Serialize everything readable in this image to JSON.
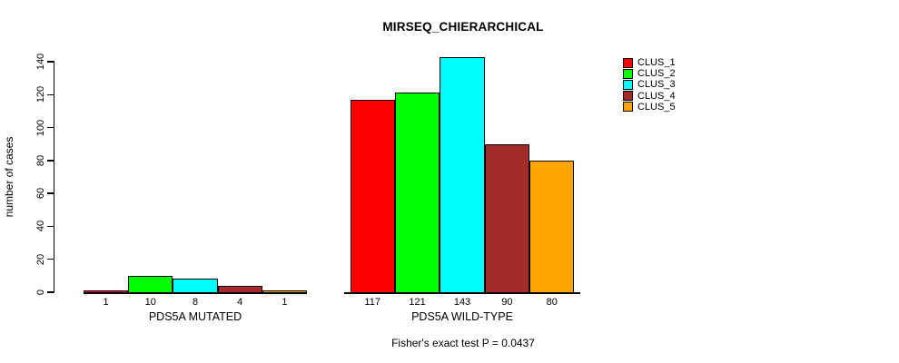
{
  "title": "MIRSEQ_CHIERARCHICAL",
  "footer": "Fisher's exact test P = 0.0437",
  "chart_data": {
    "type": "bar",
    "title": "MIRSEQ_CHIERARCHICAL",
    "xlabel": "",
    "ylabel": "number of cases",
    "ylim": [
      0,
      140
    ],
    "yticks": [
      0,
      20,
      40,
      60,
      80,
      100,
      120,
      140
    ],
    "grid": false,
    "legend_position": "right",
    "annotation": "Fisher's exact test P = 0.0437",
    "groups": [
      {
        "label": "PDS5A MUTATED",
        "values": [
          1,
          10,
          8,
          4,
          1
        ]
      },
      {
        "label": "PDS5A WILD-TYPE",
        "values": [
          117,
          121,
          143,
          90,
          80
        ]
      }
    ],
    "series": [
      {
        "name": "CLUS_1",
        "color": "#FF0000"
      },
      {
        "name": "CLUS_2",
        "color": "#00FF00"
      },
      {
        "name": "CLUS_3",
        "color": "#00FFFF"
      },
      {
        "name": "CLUS_4",
        "color": "#A52A2A"
      },
      {
        "name": "CLUS_5",
        "color": "#FFA500"
      }
    ],
    "colors": {
      "axis": "#000000",
      "text": "#000000",
      "background": "#FFFFFF"
    }
  }
}
